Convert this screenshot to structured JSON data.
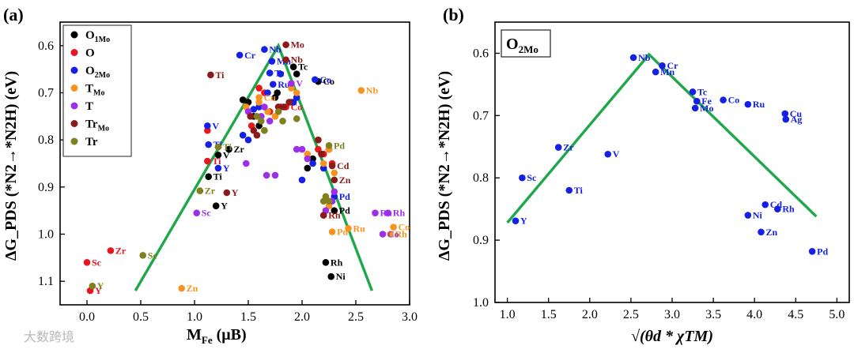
{
  "watermark": "大数跨境",
  "chart_data": [
    {
      "type": "scatter",
      "panel_label": "(a)",
      "xlabel_main": "M",
      "xlabel_sub": "Fe",
      "xlabel_unit": " (μB)",
      "ylabel": "ΔG_PDS (*N2→*N2H) (eV)",
      "xlim": [
        -0.25,
        3.0
      ],
      "ylim": [
        0.55,
        1.15
      ],
      "y_inverted": true,
      "xticks": [
        0.0,
        0.5,
        1.0,
        1.5,
        2.0,
        2.5,
        3.0
      ],
      "xtick_labels": [
        "0.0",
        "0.5",
        "1.0",
        "1.5",
        "2.0",
        "2.5",
        "3.0"
      ],
      "yticks": [
        0.6,
        0.7,
        0.8,
        0.9,
        1.0,
        1.1
      ],
      "ytick_labels": [
        "0.6",
        "0.7",
        "0.8",
        "0.9",
        "1.0",
        "1.1"
      ],
      "legend_position": "top-left",
      "legend": [
        {
          "main": "O",
          "sub": "1Mo",
          "color": "#000000"
        },
        {
          "main": "O",
          "sub": "",
          "color": "#e8161e"
        },
        {
          "main": "O",
          "sub": "2Mo",
          "color": "#1420e6"
        },
        {
          "main": "T",
          "sub": "Mo",
          "color": "#f7931e"
        },
        {
          "main": "T",
          "sub": "",
          "color": "#9b30e8"
        },
        {
          "main": "Tr",
          "sub": "Mo",
          "color": "#8b1a1a"
        },
        {
          "main": "Tr",
          "sub": "",
          "color": "#808020"
        }
      ],
      "trend_line": [
        [
          0.45,
          1.12
        ],
        [
          1.78,
          0.6
        ],
        [
          2.65,
          1.12
        ]
      ],
      "trend_color": "#1fa84a",
      "series": [
        {
          "name": "O1Mo",
          "color": "#000000",
          "points": [
            {
              "x": 1.77,
              "y": 0.7
            },
            {
              "x": 1.95,
              "y": 0.66
            },
            {
              "x": 2.15,
              "y": 0.676,
              "label": "Co"
            },
            {
              "x": 1.92,
              "y": 0.645,
              "label": "Tc"
            },
            {
              "x": 1.32,
              "y": 0.82,
              "label": "Zr"
            },
            {
              "x": 1.22,
              "y": 0.832,
              "label": "V"
            },
            {
              "x": 1.13,
              "y": 0.878,
              "label": "Ti"
            },
            {
              "x": 1.2,
              "y": 0.94,
              "label": "Y"
            },
            {
              "x": 2.22,
              "y": 1.06,
              "label": "Rh"
            },
            {
              "x": 2.27,
              "y": 1.09,
              "label": "Ni"
            },
            {
              "x": 2.3,
              "y": 0.95,
              "label": "Pd"
            },
            {
              "x": 1.75,
              "y": 0.71
            },
            {
              "x": 1.5,
              "y": 0.72
            },
            {
              "x": 1.55,
              "y": 0.75
            },
            {
              "x": 1.6,
              "y": 0.77
            },
            {
              "x": 1.45,
              "y": 0.715
            },
            {
              "x": 2.1,
              "y": 0.84
            },
            {
              "x": 2.05,
              "y": 0.86
            },
            {
              "x": 2.25,
              "y": 0.82
            }
          ]
        },
        {
          "name": "O",
          "color": "#e8161e",
          "points": [
            {
              "x": 0.0,
              "y": 1.06,
              "label": "Sc"
            },
            {
              "x": 0.22,
              "y": 1.035,
              "label": "Zr"
            },
            {
              "x": 0.03,
              "y": 1.12,
              "label": "Y"
            },
            {
              "x": 1.12,
              "y": 0.845,
              "label": "Ti"
            },
            {
              "x": 1.85,
              "y": 0.73,
              "label": "Co"
            },
            {
              "x": 1.6,
              "y": 0.69
            },
            {
              "x": 1.65,
              "y": 0.7
            },
            {
              "x": 1.8,
              "y": 0.73
            },
            {
              "x": 1.53,
              "y": 0.77
            },
            {
              "x": 1.7,
              "y": 0.74
            },
            {
              "x": 2.2,
              "y": 0.83
            },
            {
              "x": 2.15,
              "y": 0.82
            },
            {
              "x": 2.28,
              "y": 0.85
            },
            {
              "x": 1.12,
              "y": 0.78
            },
            {
              "x": 1.9,
              "y": 0.72
            }
          ]
        },
        {
          "name": "O2Mo",
          "color": "#1420e6",
          "points": [
            {
              "x": 1.65,
              "y": 0.608,
              "label": "Nb"
            },
            {
              "x": 1.42,
              "y": 0.62,
              "label": "Cr"
            },
            {
              "x": 1.72,
              "y": 0.633,
              "label": "Mn"
            },
            {
              "x": 1.7,
              "y": 0.658,
              "label": "Tc"
            },
            {
              "x": 1.73,
              "y": 0.682,
              "label": "Ru"
            },
            {
              "x": 2.12,
              "y": 0.672,
              "label": "Co"
            },
            {
              "x": 1.12,
              "y": 0.77,
              "label": "V"
            },
            {
              "x": 1.13,
              "y": 0.81,
              "label": "Ti"
            },
            {
              "x": 1.22,
              "y": 0.86,
              "label": "Y"
            },
            {
              "x": 2.3,
              "y": 0.92,
              "label": "Pd"
            },
            {
              "x": 1.8,
              "y": 0.66
            },
            {
              "x": 1.68,
              "y": 0.7
            },
            {
              "x": 1.55,
              "y": 0.735
            },
            {
              "x": 1.95,
              "y": 0.71
            },
            {
              "x": 1.6,
              "y": 0.73
            },
            {
              "x": 2.0,
              "y": 0.885
            },
            {
              "x": 2.2,
              "y": 0.86
            },
            {
              "x": 1.5,
              "y": 0.8
            },
            {
              "x": 2.1,
              "y": 0.85
            },
            {
              "x": 1.92,
              "y": 0.72
            },
            {
              "x": 1.45,
              "y": 0.79
            }
          ]
        },
        {
          "name": "TMo",
          "color": "#f7931e",
          "points": [
            {
              "x": 1.6,
              "y": 0.71,
              "label": "Cu"
            },
            {
              "x": 2.55,
              "y": 0.695,
              "label": "Nb"
            },
            {
              "x": 0.88,
              "y": 1.115,
              "label": "Zn"
            },
            {
              "x": 2.28,
              "y": 0.995,
              "label": "Pd"
            },
            {
              "x": 2.43,
              "y": 0.988,
              "label": "Ru"
            },
            {
              "x": 2.85,
              "y": 0.985,
              "label": "Co"
            },
            {
              "x": 2.82,
              "y": 1.0,
              "label": "Rh"
            },
            {
              "x": 1.6,
              "y": 0.72
            },
            {
              "x": 1.48,
              "y": 0.73
            },
            {
              "x": 1.75,
              "y": 0.75
            },
            {
              "x": 1.68,
              "y": 0.74
            },
            {
              "x": 1.9,
              "y": 0.69
            },
            {
              "x": 1.95,
              "y": 0.7
            },
            {
              "x": 2.15,
              "y": 0.8
            },
            {
              "x": 2.25,
              "y": 0.82
            },
            {
              "x": 2.05,
              "y": 0.83
            },
            {
              "x": 1.65,
              "y": 0.78
            },
            {
              "x": 2.2,
              "y": 0.85
            },
            {
              "x": 2.3,
              "y": 0.87
            },
            {
              "x": 2.25,
              "y": 0.94
            },
            {
              "x": 2.2,
              "y": 0.96
            }
          ]
        },
        {
          "name": "T",
          "color": "#9b30e8",
          "points": [
            {
              "x": 1.02,
              "y": 0.955,
              "label": "Sc"
            },
            {
              "x": 2.68,
              "y": 0.955,
              "label": "Ru"
            },
            {
              "x": 2.8,
              "y": 0.955,
              "label": "Rh"
            },
            {
              "x": 2.75,
              "y": 1.0,
              "label": "Co"
            },
            {
              "x": 1.9,
              "y": 0.68,
              "label": "V"
            },
            {
              "x": 1.65,
              "y": 0.73
            },
            {
              "x": 1.7,
              "y": 0.76
            },
            {
              "x": 1.62,
              "y": 0.75
            },
            {
              "x": 1.48,
              "y": 0.85
            },
            {
              "x": 1.67,
              "y": 0.875
            },
            {
              "x": 1.75,
              "y": 0.875
            },
            {
              "x": 1.95,
              "y": 0.82
            },
            {
              "x": 2.0,
              "y": 0.82
            },
            {
              "x": 2.05,
              "y": 0.84
            },
            {
              "x": 2.28,
              "y": 0.93
            },
            {
              "x": 2.22,
              "y": 0.95
            },
            {
              "x": 2.3,
              "y": 0.91
            },
            {
              "x": 1.5,
              "y": 0.74
            }
          ]
        },
        {
          "name": "TrMo",
          "color": "#8b1a1a",
          "points": [
            {
              "x": 1.85,
              "y": 0.598,
              "label": "Mo"
            },
            {
              "x": 1.85,
              "y": 0.63,
              "label": "Nb"
            },
            {
              "x": 1.15,
              "y": 0.662,
              "label": "Ti"
            },
            {
              "x": 1.3,
              "y": 0.912,
              "label": "Y"
            },
            {
              "x": 2.28,
              "y": 0.855,
              "label": "Cd"
            },
            {
              "x": 2.3,
              "y": 0.885,
              "label": "Zn"
            },
            {
              "x": 2.2,
              "y": 0.96,
              "label": "Rh"
            },
            {
              "x": 1.88,
              "y": 0.72
            },
            {
              "x": 1.78,
              "y": 0.73
            },
            {
              "x": 1.58,
              "y": 0.79
            },
            {
              "x": 1.55,
              "y": 0.78
            },
            {
              "x": 1.52,
              "y": 0.75
            },
            {
              "x": 2.18,
              "y": 0.83
            },
            {
              "x": 2.15,
              "y": 0.8
            },
            {
              "x": 1.83,
              "y": 0.73
            }
          ]
        },
        {
          "name": "Tr",
          "color": "#808020",
          "points": [
            {
              "x": 1.05,
              "y": 0.908,
              "label": "Zr"
            },
            {
              "x": 0.52,
              "y": 1.045,
              "label": "Sc"
            },
            {
              "x": 0.05,
              "y": 1.11,
              "label": "Y"
            },
            {
              "x": 1.22,
              "y": 0.815,
              "label": "Ti"
            },
            {
              "x": 2.25,
              "y": 0.812,
              "label": "Pd"
            },
            {
              "x": 1.58,
              "y": 0.75
            },
            {
              "x": 1.62,
              "y": 0.76
            },
            {
              "x": 1.95,
              "y": 0.755
            },
            {
              "x": 1.65,
              "y": 0.78
            },
            {
              "x": 1.82,
              "y": 0.76
            },
            {
              "x": 1.78,
              "y": 0.74
            },
            {
              "x": 2.22,
              "y": 0.92
            },
            {
              "x": 2.25,
              "y": 0.93
            },
            {
              "x": 2.2,
              "y": 0.93
            }
          ]
        }
      ]
    },
    {
      "type": "scatter",
      "panel_label": "(b)",
      "box_main": "O",
      "box_sub": "2Mo",
      "xlabel": "√(θd * χTM)",
      "ylabel": "ΔG_PDS (*N2→*N2H) (eV)",
      "xlim": [
        0.85,
        5.15
      ],
      "ylim": [
        0.55,
        1.0
      ],
      "y_inverted": true,
      "xticks": [
        1.0,
        1.5,
        2.0,
        2.5,
        3.0,
        3.5,
        4.0,
        4.5,
        5.0
      ],
      "xtick_labels": [
        "1.0",
        "1.5",
        "2.0",
        "2.5",
        "3.0",
        "3.5",
        "4.0",
        "4.5",
        "5.0"
      ],
      "yticks": [
        0.6,
        0.7,
        0.8,
        0.9,
        1.0
      ],
      "ytick_labels": [
        "0.6",
        "0.7",
        "0.8",
        "0.9",
        "1.0"
      ],
      "trend_line": [
        [
          1.0,
          0.872
        ],
        [
          2.72,
          0.602
        ],
        [
          4.75,
          0.862
        ]
      ],
      "trend_color": "#1fa84a",
      "series": [
        {
          "name": "O2Mo",
          "color": "#1420e6",
          "points": [
            {
              "x": 2.53,
              "y": 0.607,
              "label": "Nb"
            },
            {
              "x": 2.88,
              "y": 0.62,
              "label": "Cr"
            },
            {
              "x": 2.8,
              "y": 0.63,
              "label": "Mn"
            },
            {
              "x": 3.25,
              "y": 0.662,
              "label": "Tc"
            },
            {
              "x": 3.3,
              "y": 0.677,
              "label": "Fe"
            },
            {
              "x": 3.28,
              "y": 0.688,
              "label": "Mo"
            },
            {
              "x": 3.62,
              "y": 0.675,
              "label": "Co"
            },
            {
              "x": 3.92,
              "y": 0.682,
              "label": "Ru"
            },
            {
              "x": 4.37,
              "y": 0.697,
              "label": "Cu"
            },
            {
              "x": 4.38,
              "y": 0.706,
              "label": "Ag"
            },
            {
              "x": 1.62,
              "y": 0.751,
              "label": "Zr"
            },
            {
              "x": 2.22,
              "y": 0.762,
              "label": "V"
            },
            {
              "x": 1.18,
              "y": 0.8,
              "label": "Sc"
            },
            {
              "x": 1.75,
              "y": 0.82,
              "label": "Ti"
            },
            {
              "x": 1.1,
              "y": 0.869,
              "label": "Y"
            },
            {
              "x": 4.13,
              "y": 0.843,
              "label": "Cd"
            },
            {
              "x": 4.28,
              "y": 0.85,
              "label": "Rh"
            },
            {
              "x": 3.92,
              "y": 0.86,
              "label": "Ni"
            },
            {
              "x": 4.08,
              "y": 0.887,
              "label": "Zn"
            },
            {
              "x": 4.7,
              "y": 0.918,
              "label": "Pd"
            }
          ]
        }
      ]
    }
  ]
}
